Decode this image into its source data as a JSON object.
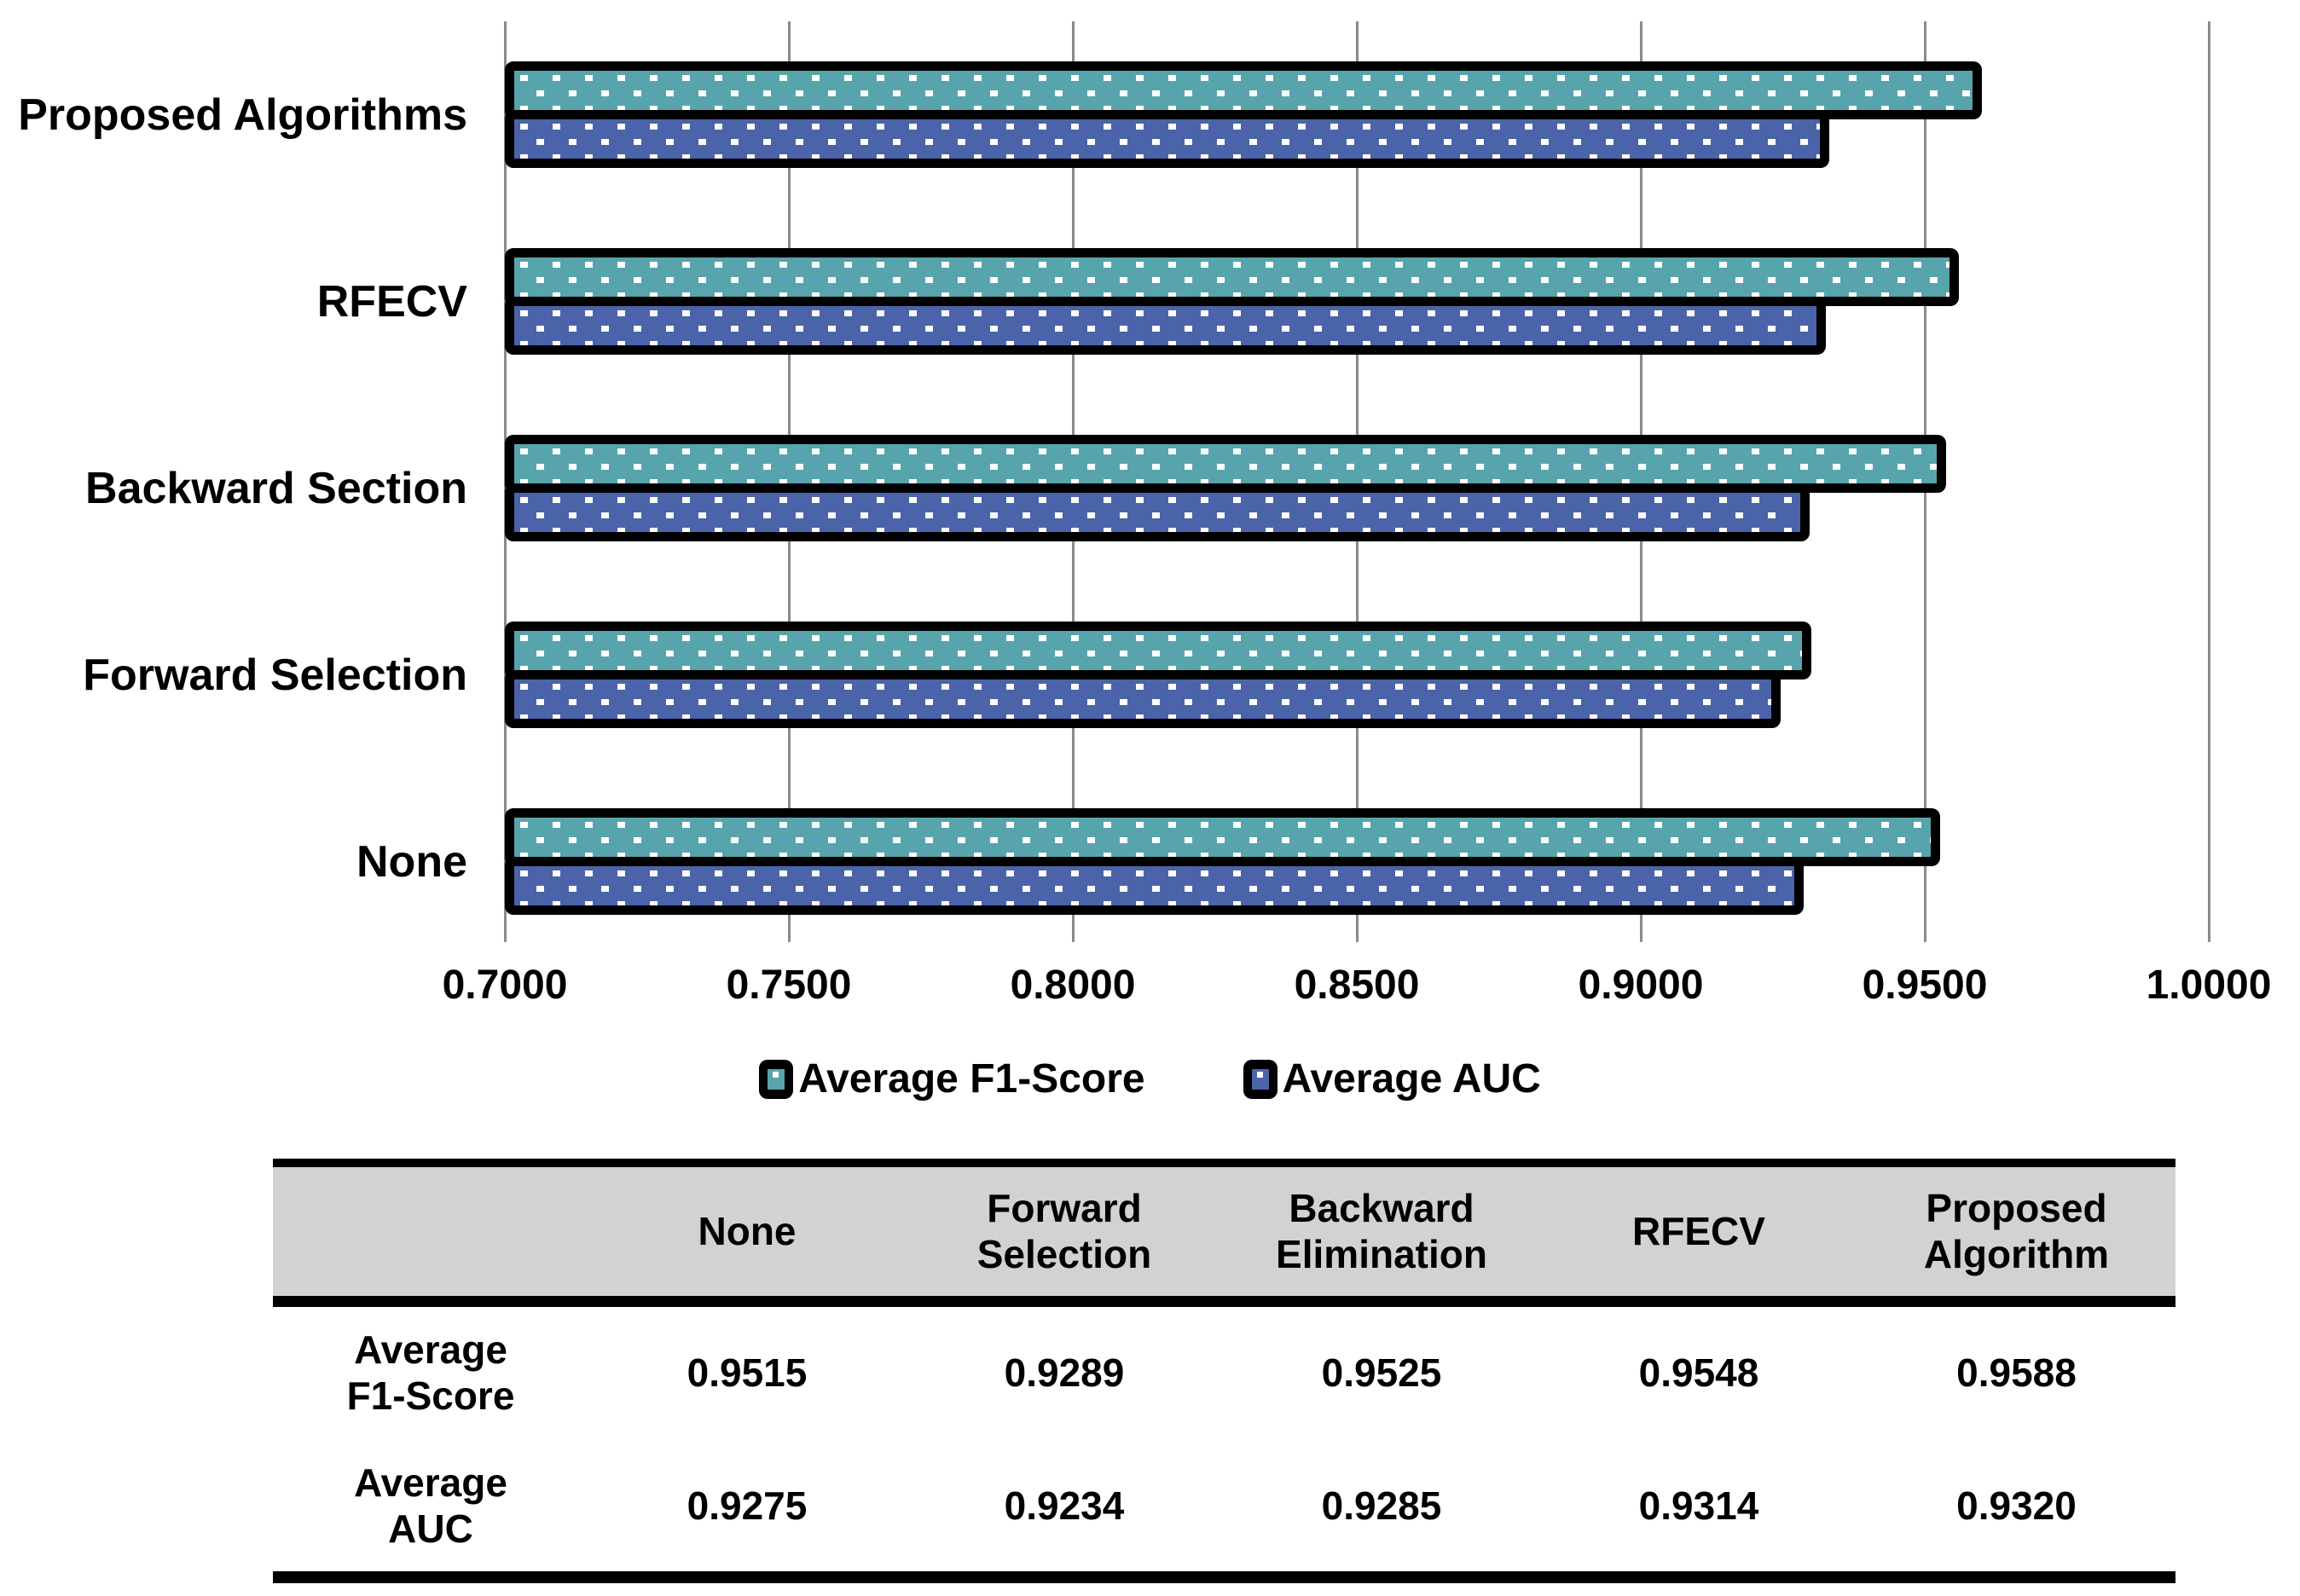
{
  "chart_data": {
    "type": "bar",
    "orientation": "horizontal",
    "title": "",
    "categories_top_to_bottom": [
      "Proposed Algorithms",
      "RFECV",
      "Backward Section",
      "Forward Selection",
      "None"
    ],
    "series": [
      {
        "name": "Average F1-Score",
        "color": "#58A4AC",
        "values": [
          0.9588,
          0.9548,
          0.9525,
          0.9289,
          0.9515
        ]
      },
      {
        "name": "Average AUC",
        "color": "#4B63A9",
        "values": [
          0.932,
          0.9314,
          0.9285,
          0.9234,
          0.9275
        ]
      }
    ],
    "x_axis": {
      "min": 0.7,
      "max": 1.0,
      "step": 0.05,
      "tick_labels": [
        "0.7000",
        "0.7500",
        "0.8000",
        "0.8500",
        "0.9000",
        "0.9500",
        "1.0000"
      ]
    },
    "grid": true,
    "legend_position": "bottom"
  },
  "legend": {
    "entries": [
      {
        "label": "Average F1-Score",
        "color": "#58A4AC"
      },
      {
        "label": "Average AUC",
        "color": "#4B63A9"
      }
    ]
  },
  "table": {
    "columns": [
      "",
      "None",
      "Forward\nSelection",
      "Backward\nElimination",
      "RFECV",
      "Proposed\nAlgorithm"
    ],
    "rows": [
      {
        "label": "Average\nF1-Score",
        "values": [
          "0.9515",
          "0.9289",
          "0.9525",
          "0.9548",
          "0.9588"
        ]
      },
      {
        "label": "Average\nAUC",
        "values": [
          "0.9275",
          "0.9234",
          "0.9285",
          "0.9314",
          "0.9320"
        ]
      }
    ],
    "header_bg": "#D2D2D2"
  },
  "colors": {
    "grid": "#8A8A8A",
    "bar_border": "#000000",
    "text": "#000000",
    "background": "#FFFFFF"
  }
}
